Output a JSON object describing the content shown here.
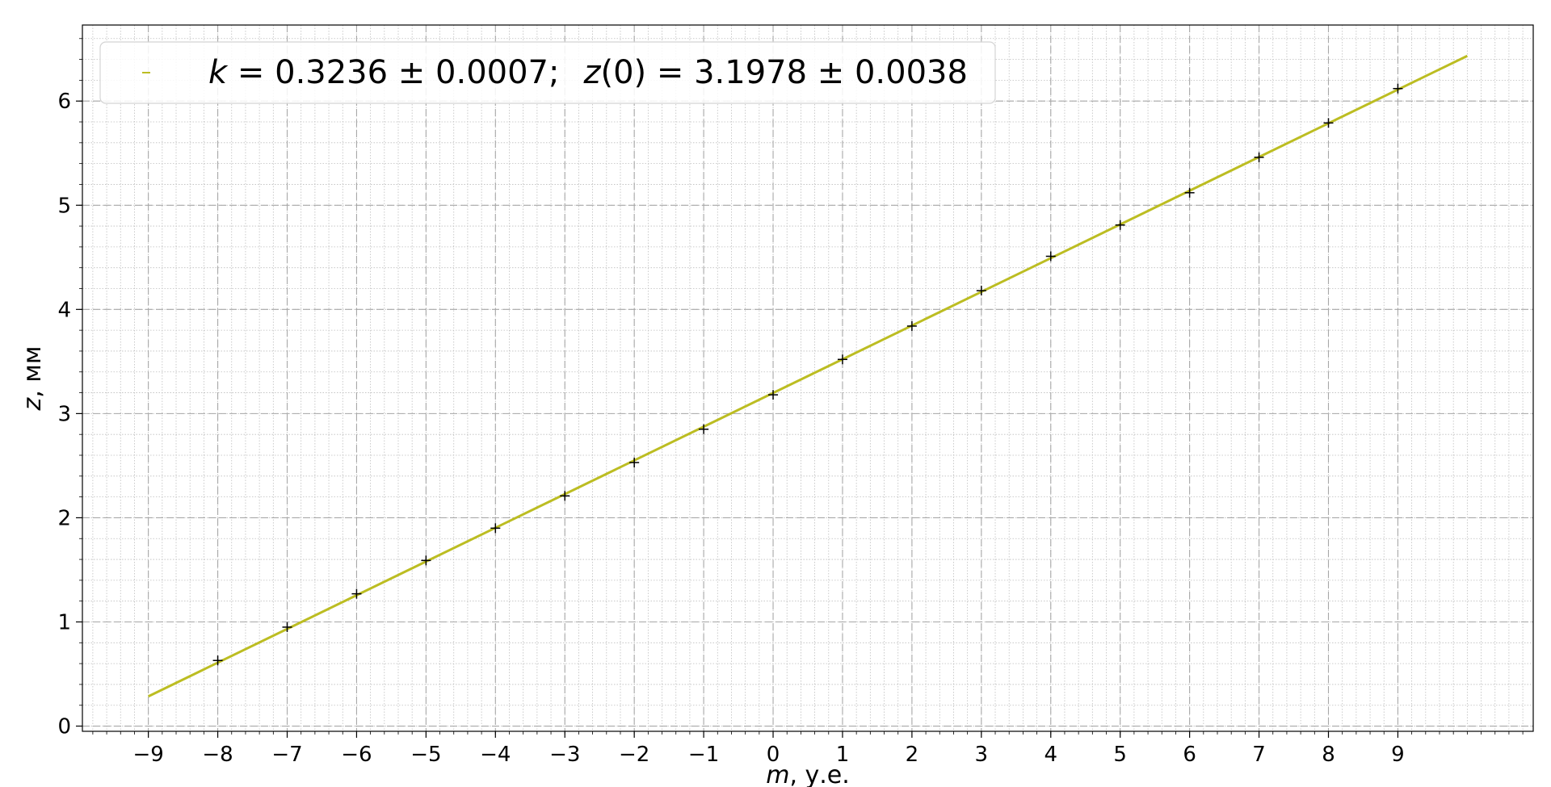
{
  "chart_data": {
    "type": "scatter",
    "xlabel_var": "m",
    "xlabel_unit": ", у.е.",
    "ylabel_var": "z",
    "ylabel_unit": ", мм",
    "xlim": [
      -9.95,
      10.95
    ],
    "ylim": [
      -0.05,
      6.73
    ],
    "xticks": [
      -9,
      -8,
      -7,
      -6,
      -5,
      -4,
      -3,
      -2,
      -1,
      0,
      1,
      2,
      3,
      4,
      5,
      6,
      7,
      8,
      9
    ],
    "xtick_labels": [
      "−9",
      "−8",
      "−7",
      "−6",
      "−5",
      "−4",
      "−3",
      "−2",
      "−1",
      "0",
      "1",
      "2",
      "3",
      "4",
      "5",
      "6",
      "7",
      "8",
      "9"
    ],
    "yticks": [
      0,
      1,
      2,
      3,
      4,
      5,
      6
    ],
    "ytick_labels": [
      "0",
      "1",
      "2",
      "3",
      "4",
      "5",
      "6"
    ],
    "grid": true,
    "legend_position": "top-left",
    "legend": {
      "k_var": "k",
      "k_text": " = 0.3236 ± 0.0007;",
      "z_var": "z",
      "z_text": "(0) = 3.1978 ± 0.0038"
    },
    "points": {
      "x": [
        -8,
        -7,
        -6,
        -5,
        -4,
        -3,
        -2,
        -1,
        0,
        1,
        2,
        3,
        4,
        5,
        6,
        7,
        8,
        9
      ],
      "y": [
        0.63,
        0.95,
        1.27,
        1.59,
        1.9,
        2.21,
        2.53,
        2.85,
        3.18,
        3.52,
        3.84,
        4.18,
        4.51,
        4.81,
        5.12,
        5.46,
        5.79,
        6.12
      ]
    },
    "fit": {
      "slope": 0.3236,
      "intercept": 3.1978,
      "x_range": [
        -9,
        10
      ],
      "color": "#bcbd22"
    },
    "point_color": "#000000"
  }
}
